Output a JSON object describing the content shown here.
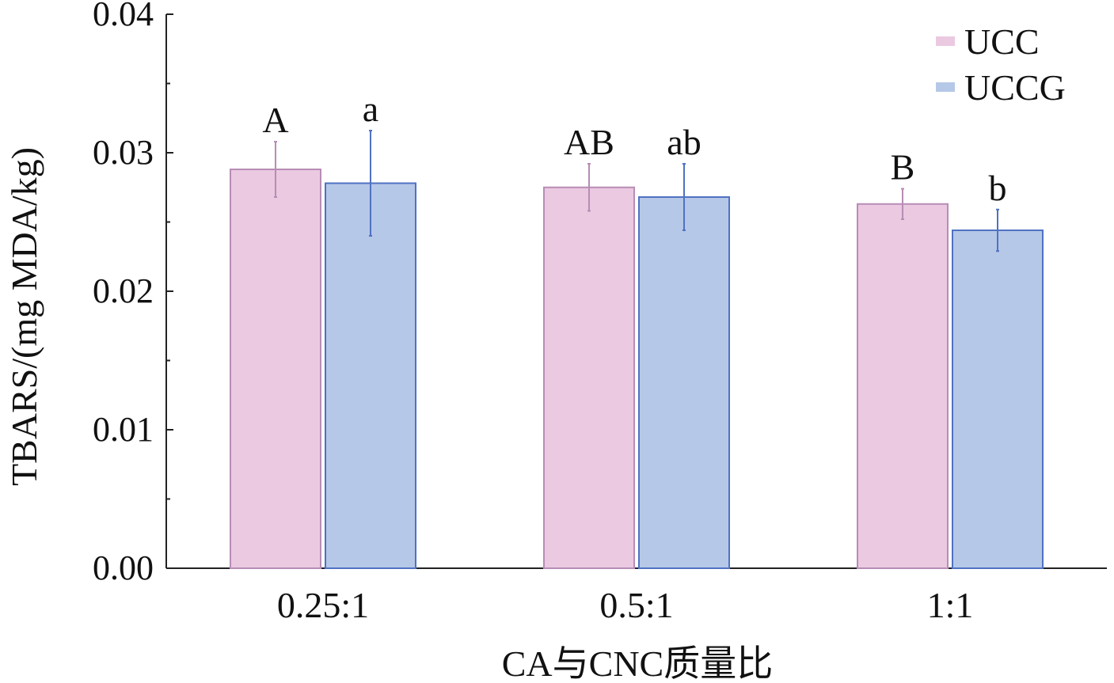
{
  "chart_data": {
    "type": "bar",
    "title": "",
    "xlabel": "CA与CNC质量比",
    "ylabel": "TBARS/(mg MDA/kg)",
    "categories": [
      "0.25:1",
      "0.5:1",
      "1:1"
    ],
    "ylim": [
      0,
      0.04
    ],
    "yticks": [
      "0.00",
      "0.01",
      "0.02",
      "0.03",
      "0.04"
    ],
    "grid": false,
    "legend_position": "top-right",
    "series": [
      {
        "name": "UCC",
        "color": "#ebc9e1",
        "edge_color": "#b78db5",
        "values": [
          0.0288,
          0.0275,
          0.0263
        ],
        "errors": [
          0.002,
          0.0017,
          0.0011
        ],
        "labels": [
          "A",
          "AB",
          "B"
        ]
      },
      {
        "name": "UCCG",
        "color": "#b6c8e7",
        "edge_color": "#4f72c2",
        "values": [
          0.0278,
          0.0268,
          0.0244
        ],
        "errors": [
          0.0038,
          0.0024,
          0.0015
        ],
        "labels": [
          "a",
          "ab",
          "b"
        ]
      }
    ]
  }
}
